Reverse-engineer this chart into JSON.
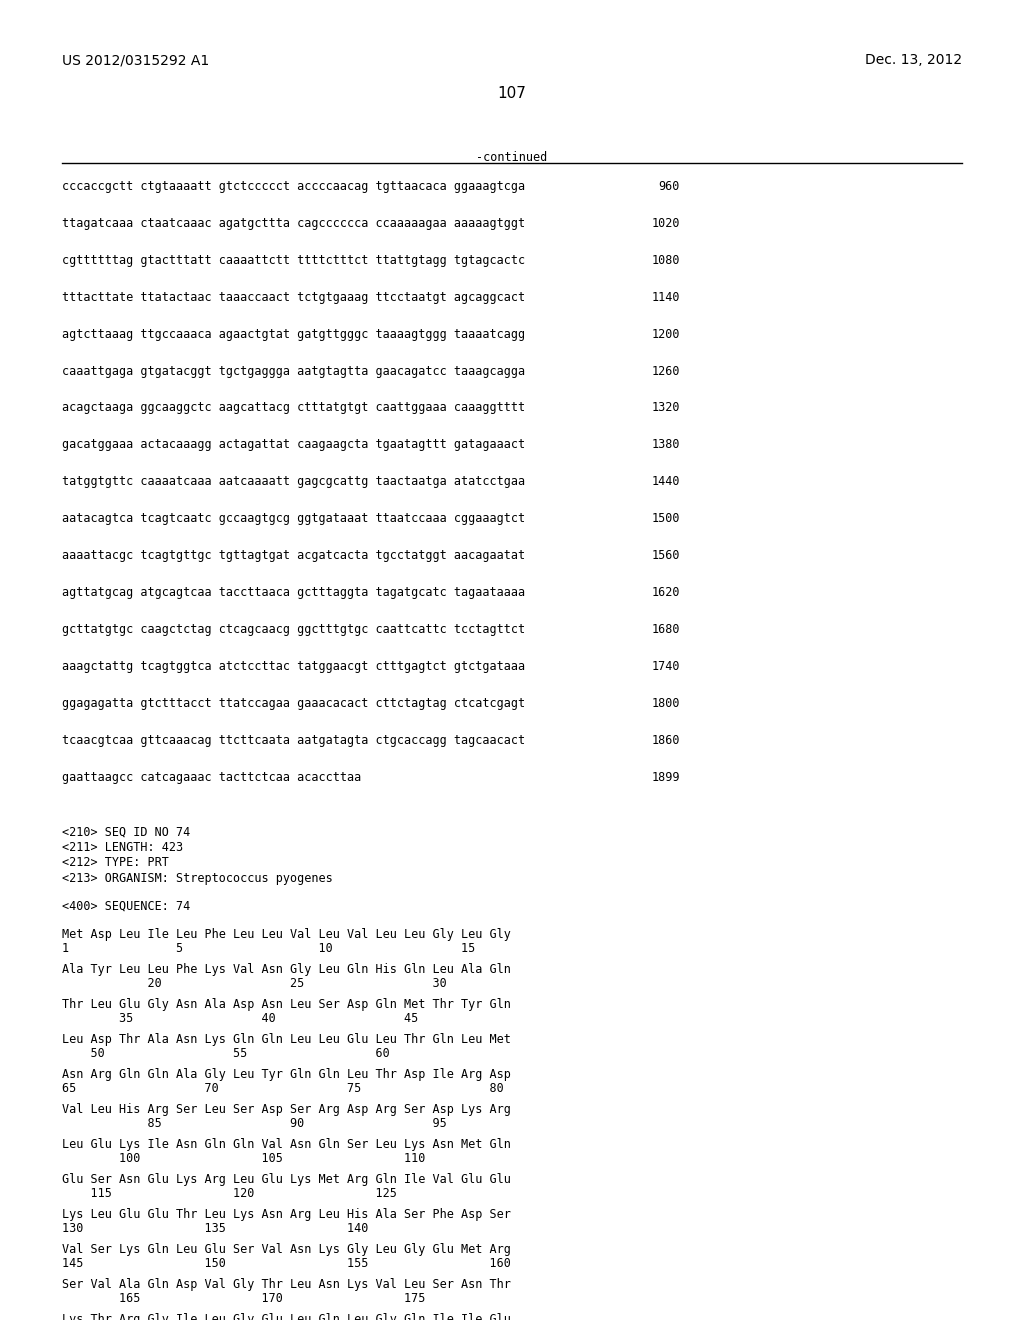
{
  "header_left": "US 2012/0315292 A1",
  "header_right": "Dec. 13, 2012",
  "page_number": "107",
  "continued_label": "-continued",
  "background_color": "#ffffff",
  "text_color": "#000000",
  "sequence_lines": [
    [
      "cccaccgctt ctgtaaaatt gtctccccct accccaacag tgttaacaca ggaaagtcga",
      "960"
    ],
    [
      "ttagatcaaa ctaatcaaac agatgcttta cagcccccca ccaaaaagaa aaaaagtggt",
      "1020"
    ],
    [
      "cgttttttag gtactttatt caaaattctt ttttctttct ttattgtagg tgtagcactc",
      "1080"
    ],
    [
      "tttacttate ttatactaac taaaccaact tctgtgaaag ttcctaatgt agcaggcact",
      "1140"
    ],
    [
      "agtcttaaag ttgccaaaca agaactgtat gatgttgggc taaaagtggg taaaatcagg",
      "1200"
    ],
    [
      "caaattgaga gtgatacggt tgctgaggga aatgtagtta gaacagatcc taaagcagga",
      "1260"
    ],
    [
      "acagctaaga ggcaaggctc aagcattacg ctttatgtgt caattggaaa caaaggtttt",
      "1320"
    ],
    [
      "gacatggaaa actacaaagg actagattat caagaagcta tgaatagttt gatagaaact",
      "1380"
    ],
    [
      "tatggtgttc caaaatcaaa aatcaaaatt gagcgcattg taactaatga atatcctgaa",
      "1440"
    ],
    [
      "aatacagtca tcagtcaatc gccaagtgcg ggtgataaat ttaatccaaa cggaaagtct",
      "1500"
    ],
    [
      "aaaattacgc tcagtgttgc tgttagtgat acgatcacta tgcctatggt aacagaatat",
      "1560"
    ],
    [
      "agttatgcag atgcagtcaa taccttaaca gctttaggta tagatgcatc tagaataaaa",
      "1620"
    ],
    [
      "gcttatgtgc caagctctag ctcagcaacg ggctttgtgc caattcattc tcctagttct",
      "1680"
    ],
    [
      "aaagctattg tcagtggtca atctccttac tatggaacgt ctttgagtct gtctgataaa",
      "1740"
    ],
    [
      "ggagagatta gtctttacct ttatccagaa gaaacacact cttctagtag ctcatcgagt",
      "1800"
    ],
    [
      "tcaacgtcaa gttcaaacag ttcttcaata aatgatagta ctgcaccagg tagcaacact",
      "1860"
    ],
    [
      "gaattaagcc catcagaaac tacttctcaa acaccttaa",
      "1899"
    ]
  ],
  "metadata_lines": [
    "<210> SEQ ID NO 74",
    "<211> LENGTH: 423",
    "<212> TYPE: PRT",
    "<213> ORGANISM: Streptococcus pyogenes"
  ],
  "sequence_header": "<400> SEQUENCE: 74",
  "protein_blocks": [
    {
      "seq": "Met Asp Leu Ile Leu Phe Leu Leu Val Leu Val Leu Leu Gly Leu Gly",
      "nums": "1               5                   10                  15"
    },
    {
      "seq": "Ala Tyr Leu Leu Phe Lys Val Asn Gly Leu Gln His Gln Leu Ala Gln",
      "nums": "            20                  25                  30"
    },
    {
      "seq": "Thr Leu Glu Gly Asn Ala Asp Asn Leu Ser Asp Gln Met Thr Tyr Gln",
      "nums": "        35                  40                  45"
    },
    {
      "seq": "Leu Asp Thr Ala Asn Lys Gln Gln Leu Leu Glu Leu Thr Gln Leu Met",
      "nums": "    50                  55                  60"
    },
    {
      "seq": "Asn Arg Gln Gln Ala Gly Leu Tyr Gln Gln Leu Thr Asp Ile Arg Asp",
      "nums": "65                  70                  75                  80"
    },
    {
      "seq": "Val Leu His Arg Ser Leu Ser Asp Ser Arg Asp Arg Ser Asp Lys Arg",
      "nums": "            85                  90                  95"
    },
    {
      "seq": "Leu Glu Lys Ile Asn Gln Gln Val Asn Gln Ser Leu Lys Asn Met Gln",
      "nums": "        100                 105                 110"
    },
    {
      "seq": "Glu Ser Asn Glu Lys Arg Leu Glu Lys Met Arg Gln Ile Val Glu Glu",
      "nums": "    115                 120                 125"
    },
    {
      "seq": "Lys Leu Glu Glu Thr Leu Lys Asn Arg Leu His Ala Ser Phe Asp Ser",
      "nums": "130                 135                 140"
    },
    {
      "seq": "Val Ser Lys Gln Leu Glu Ser Val Asn Lys Gly Leu Gly Glu Met Arg",
      "nums": "145                 150                 155                 160"
    },
    {
      "seq": "Ser Val Ala Gln Asp Val Gly Thr Leu Asn Lys Val Leu Ser Asn Thr",
      "nums": "        165                 170                 175"
    },
    {
      "seq": "Lys Thr Arg Gly Ile Leu Gly Glu Leu Gln Leu Gly Gln Ile Ile Glu",
      "nums": ""
    }
  ]
}
